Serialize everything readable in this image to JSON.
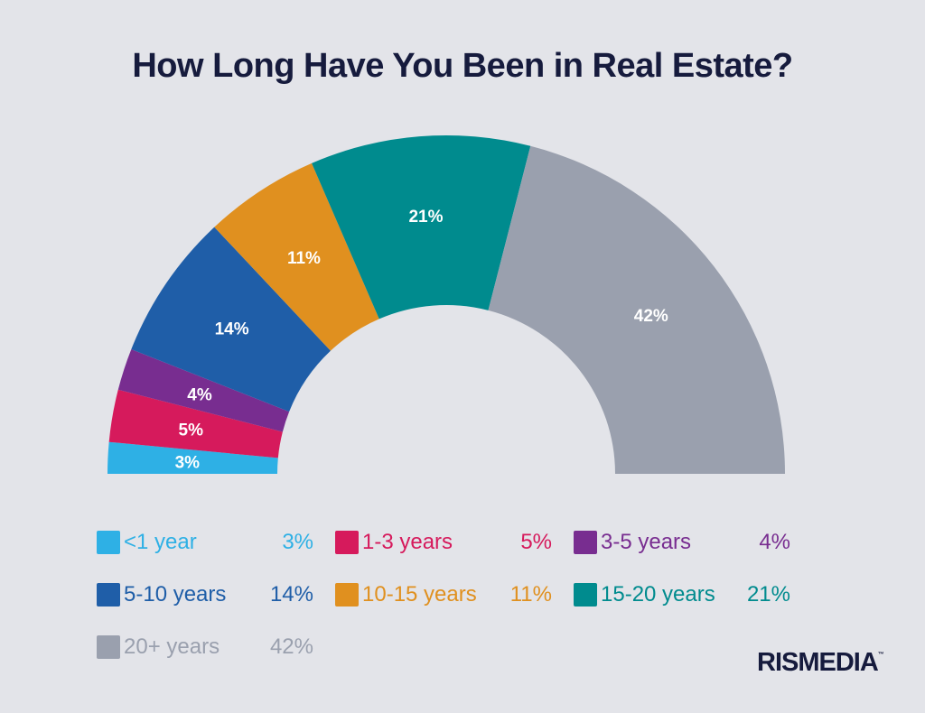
{
  "chart_data": {
    "type": "pie",
    "variant": "semi-donut",
    "title": "How Long Have You Been in Real Estate?",
    "categories": [
      "<1 year",
      "1-3 years",
      "3-5 years",
      "5-10 years",
      "10-15 years",
      "15-20 years",
      "20+ years"
    ],
    "values": [
      3,
      5,
      4,
      14,
      11,
      21,
      42
    ],
    "labels": [
      "3%",
      "5%",
      "4%",
      "14%",
      "11%",
      "21%",
      "42%"
    ],
    "colors": [
      "#2eb0e5",
      "#d61a5c",
      "#782d90",
      "#1f5ea8",
      "#e0901f",
      "#008b8e",
      "#9aa0ae"
    ],
    "legend_position": "bottom"
  },
  "brand": {
    "logo": "RISMEDIA",
    "tm": "TM"
  }
}
